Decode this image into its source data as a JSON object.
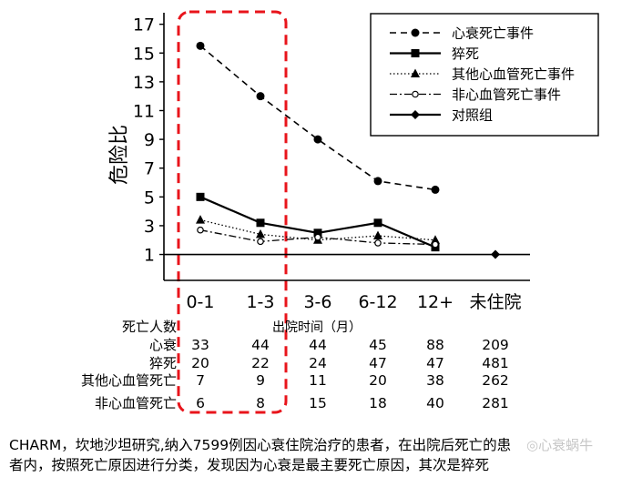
{
  "chart_data": {
    "type": "line",
    "title": "",
    "ylabel": "危险比",
    "xlabel": "出院时间（月）",
    "categories": [
      "0-1",
      "1-3",
      "3-6",
      "6-12",
      "12+",
      "未住院"
    ],
    "yticks": [
      1,
      3,
      5,
      7,
      9,
      11,
      13,
      15,
      17
    ],
    "ylim": [
      -0.8,
      17.8
    ],
    "series": [
      {
        "name": "心衰死亡事件",
        "marker": "circle",
        "dash": "dashed",
        "values": [
          15.5,
          12.0,
          9.0,
          6.1,
          5.5,
          null
        ]
      },
      {
        "name": "猝死",
        "marker": "square",
        "dash": "solid",
        "values": [
          5.0,
          3.2,
          2.5,
          3.2,
          1.5,
          null
        ]
      },
      {
        "name": "其他心血管死亡事件",
        "marker": "triangle",
        "dash": "dotted",
        "values": [
          3.4,
          2.4,
          2.0,
          2.3,
          2.0,
          null
        ]
      },
      {
        "name": "非心血管死亡事件",
        "marker": "open-circle",
        "dash": "dashdot",
        "values": [
          2.7,
          1.9,
          2.2,
          1.8,
          1.7,
          null
        ]
      },
      {
        "name": "对照组",
        "marker": "diamond",
        "dash": "solid",
        "values": [
          null,
          null,
          null,
          null,
          null,
          1.0
        ]
      }
    ],
    "reference_line": 1,
    "legend_position": "top-right",
    "highlight_box": {
      "label": "",
      "categories": [
        "0-1",
        "1-3"
      ],
      "color": "#e8141b"
    },
    "death_table": {
      "header": "死亡人数",
      "rows": [
        {
          "label": "心衰",
          "values": [
            "33",
            "44",
            "44",
            "45",
            "88",
            "209"
          ]
        },
        {
          "label": "猝死",
          "values": [
            "20",
            "22",
            "24",
            "47",
            "47",
            "481"
          ]
        },
        {
          "label": "其他心血管死亡",
          "values": [
            "7",
            "9",
            "11",
            "20",
            "38",
            "262"
          ]
        },
        {
          "label": "非心血管死亡",
          "values": [
            "6",
            "8",
            "15",
            "18",
            "40",
            "281"
          ]
        }
      ]
    }
  },
  "caption": {
    "line1": "CHARM，坎地沙坦研究,纳入7599例因心衰住院治疗的患者，在出院后死亡的患",
    "line2": "者内，按照死亡原因进行分类，发现因为心衰是最主要死亡原因，其次是猝死",
    "watermark": "心衰蜗牛"
  },
  "colors": {
    "highlight": "#e8141b",
    "line": "#000000",
    "reference": "#000000"
  }
}
